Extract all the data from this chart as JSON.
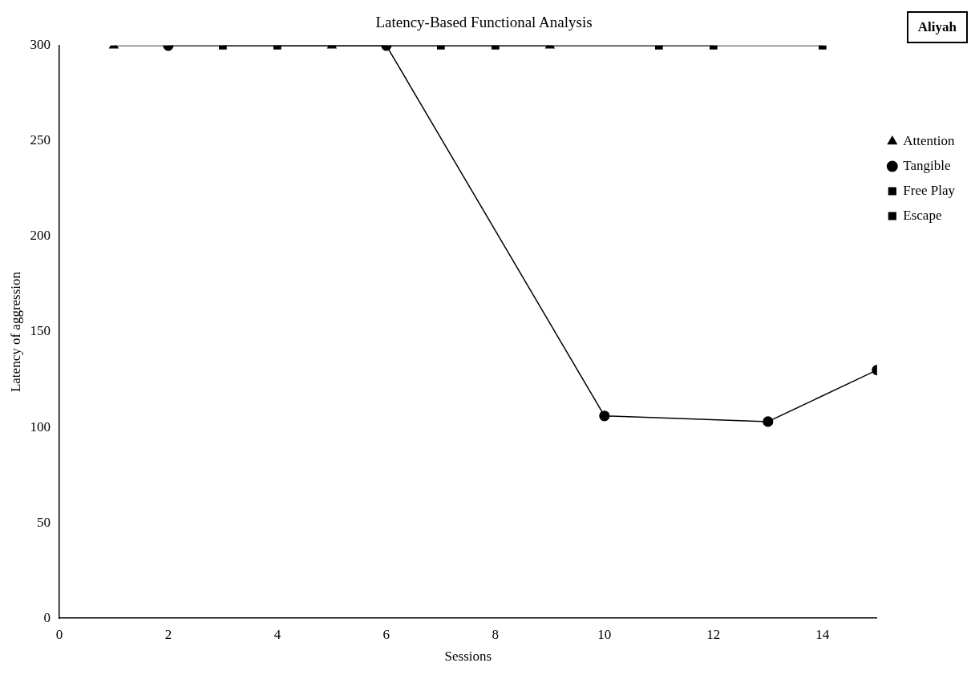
{
  "chart_data": {
    "type": "line",
    "title": "Latency-Based Functional Analysis",
    "xlabel": "Sessions",
    "ylabel": "Latency of aggression",
    "annotations": [
      "Aliyah"
    ],
    "xlim": [
      0,
      15
    ],
    "xticks": [
      0,
      2,
      4,
      6,
      8,
      10,
      12,
      14
    ],
    "ylim": [
      0,
      300
    ],
    "yticks": [
      0,
      50,
      100,
      150,
      200,
      250,
      300
    ],
    "grid": false,
    "legend": "right",
    "line_style": "solid",
    "series": [
      {
        "name": "Attention",
        "color": "#000000",
        "marker": "triangle",
        "x": [
          1,
          5,
          9
        ],
        "values": [
          300,
          300,
          300
        ]
      },
      {
        "name": "Tangible",
        "color": "#000000",
        "marker": "circle",
        "x": [
          2,
          6,
          10,
          13,
          15
        ],
        "values": [
          300,
          300,
          106,
          103,
          130
        ]
      },
      {
        "name": "Free Play",
        "color": "#000000",
        "marker": "square",
        "x": [
          3,
          7,
          11,
          14
        ],
        "values": [
          300,
          300,
          300,
          300
        ]
      },
      {
        "name": "Escape",
        "color": "#000000",
        "marker": "square",
        "x": [
          4,
          8,
          12
        ],
        "values": [
          300,
          300,
          300
        ]
      }
    ]
  }
}
